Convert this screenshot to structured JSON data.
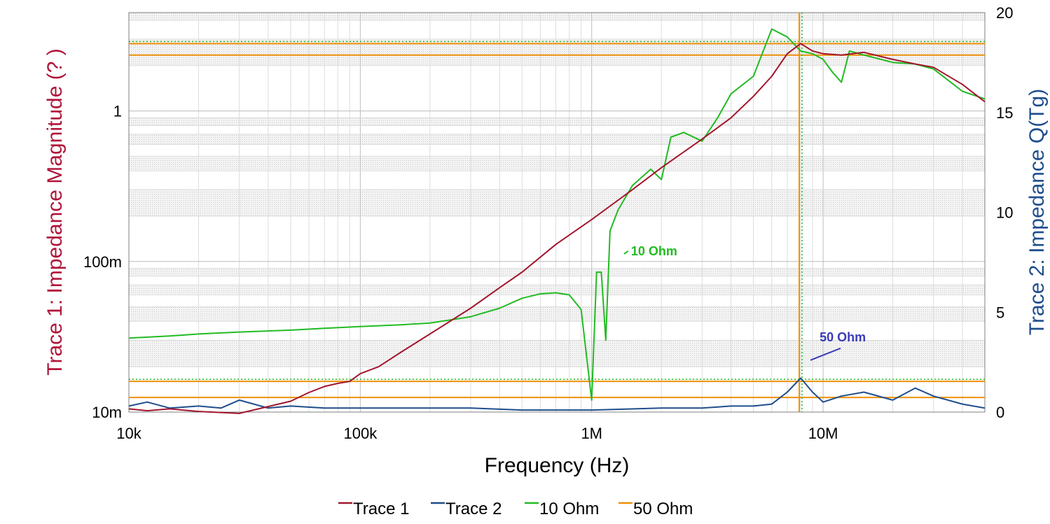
{
  "chart_data": {
    "type": "line",
    "x_scale": "log",
    "y_scale_left": "log",
    "y_scale_right": "linear",
    "xlabel": "Frequency (Hz)",
    "ylabel_left": "Trace 1: Impedance Magnitude (? )",
    "ylabel_right": "Trace 2: Impedance Q(Tg)",
    "xlim": [
      10000,
      50000000
    ],
    "ylim_left": [
      0.01,
      4.5
    ],
    "ylim_right": [
      0,
      20
    ],
    "x_ticks": [
      {
        "value": 10000,
        "label": "10k"
      },
      {
        "value": 100000,
        "label": "100k"
      },
      {
        "value": 1000000,
        "label": "1M"
      },
      {
        "value": 10000000,
        "label": "10M"
      }
    ],
    "y_ticks_left": [
      {
        "value": 0.01,
        "label": "10m"
      },
      {
        "value": 0.1,
        "label": "100m"
      },
      {
        "value": 1,
        "label": "1"
      }
    ],
    "y_ticks_right": [
      {
        "value": 0,
        "label": "0"
      },
      {
        "value": 5,
        "label": "5"
      },
      {
        "value": 10,
        "label": "10"
      },
      {
        "value": 15,
        "label": "15"
      },
      {
        "value": 20,
        "label": "20"
      }
    ],
    "grid": true,
    "legend_position": "bottom",
    "colors": {
      "trace1": "#a3162d",
      "trace2": "#1f4e8c",
      "ohm10": "#22bb22",
      "ohm50": "#f0900a",
      "annot50": "#3b3bb8",
      "ylabel_left": "#b0153a",
      "ylabel_right": "#1f4e8c"
    },
    "series": [
      {
        "name": "Trace 1",
        "axis": "left",
        "color": "#a3162d",
        "x": [
          10000,
          12000,
          15000,
          20000,
          30000,
          50000,
          60000,
          70000,
          80000,
          90000,
          100000,
          120000,
          150000,
          200000,
          300000,
          400000,
          500000,
          700000,
          1000000,
          1500000,
          2000000,
          3000000,
          4000000,
          5000000,
          6000000,
          7000000,
          8000000,
          9000000,
          10000000,
          12000000,
          15000000,
          20000000,
          25000000,
          30000000,
          40000000,
          50000000
        ],
        "y": [
          0.0105,
          0.0102,
          0.0105,
          0.0101,
          0.0098,
          0.0118,
          0.0135,
          0.0148,
          0.0155,
          0.016,
          0.018,
          0.02,
          0.025,
          0.033,
          0.049,
          0.067,
          0.085,
          0.13,
          0.19,
          0.3,
          0.42,
          0.65,
          0.9,
          1.25,
          1.7,
          2.4,
          2.8,
          2.5,
          2.4,
          2.35,
          2.45,
          2.2,
          2.05,
          1.95,
          1.5,
          1.15
        ]
      },
      {
        "name": "Trace 2",
        "axis": "right",
        "color": "#1f4e8c",
        "x": [
          10000,
          12000,
          15000,
          20000,
          25000,
          30000,
          40000,
          50000,
          70000,
          100000,
          150000,
          200000,
          300000,
          500000,
          700000,
          1000000,
          2000000,
          3000000,
          4000000,
          5000000,
          6000000,
          7000000,
          8000000,
          9000000,
          10000000,
          12000000,
          15000000,
          20000000,
          25000000,
          30000000,
          40000000,
          50000000
        ],
        "y": [
          0.3,
          0.5,
          0.2,
          0.3,
          0.2,
          0.6,
          0.2,
          0.3,
          0.2,
          0.2,
          0.2,
          0.2,
          0.2,
          0.1,
          0.1,
          0.1,
          0.2,
          0.2,
          0.3,
          0.3,
          0.4,
          1.0,
          1.7,
          1.0,
          0.5,
          0.8,
          1.0,
          0.6,
          1.2,
          0.8,
          0.4,
          0.2
        ]
      },
      {
        "name": "10 Ohm",
        "axis": "left",
        "color": "#22bb22",
        "x": [
          10000,
          15000,
          20000,
          30000,
          50000,
          70000,
          100000,
          150000,
          200000,
          300000,
          400000,
          500000,
          600000,
          700000,
          800000,
          900000,
          1000000,
          1050000,
          1100000,
          1150000,
          1200000,
          1300000,
          1500000,
          1800000,
          2000000,
          2200000,
          2500000,
          3000000,
          3500000,
          4000000,
          5000000,
          6000000,
          7000000,
          8000000,
          9000000,
          10000000,
          11000000,
          12000000,
          13000000,
          15000000,
          20000000,
          25000000,
          30000000,
          40000000,
          50000000
        ],
        "y": [
          0.031,
          0.032,
          0.033,
          0.034,
          0.035,
          0.036,
          0.037,
          0.038,
          0.039,
          0.043,
          0.049,
          0.057,
          0.061,
          0.062,
          0.06,
          0.048,
          0.012,
          0.085,
          0.085,
          0.03,
          0.16,
          0.22,
          0.32,
          0.41,
          0.35,
          0.67,
          0.72,
          0.63,
          0.9,
          1.3,
          1.7,
          3.5,
          3.1,
          2.5,
          2.4,
          2.2,
          1.8,
          1.55,
          2.5,
          2.35,
          2.1,
          2.05,
          1.9,
          1.35,
          1.2
        ]
      },
      {
        "name": "50 Ohm",
        "axis": "left",
        "color": "#f0900a",
        "x": [],
        "y": []
      }
    ],
    "reference_lines": {
      "horizontal_left": [
        2.8,
        2.35,
        0.016,
        0.0125
      ],
      "vertical_x": [
        8000000
      ]
    },
    "annotations": [
      {
        "text": "10 Ohm",
        "color": "#22bb22",
        "x": 1500000,
        "y": 0.11
      },
      {
        "text": "50 Ohm",
        "color": "#3b3bb8",
        "x": 10000000,
        "y": 0.028
      }
    ]
  }
}
